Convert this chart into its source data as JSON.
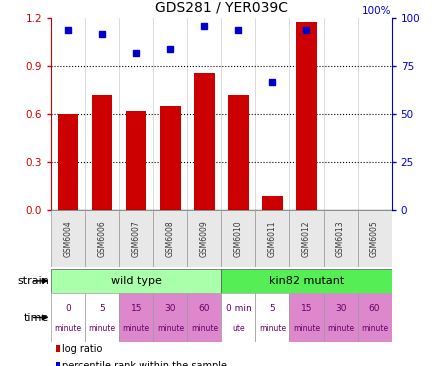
{
  "title": "GDS281 / YER039C",
  "categories": [
    "GSM6004",
    "GSM6006",
    "GSM6007",
    "GSM6008",
    "GSM6009",
    "GSM6010",
    "GSM6011",
    "GSM6012",
    "GSM6013",
    "GSM6005"
  ],
  "log_ratio": [
    0.6,
    0.72,
    0.62,
    0.65,
    0.86,
    0.72,
    0.09,
    1.18,
    0.0,
    0.0
  ],
  "percentile": [
    94,
    92,
    82,
    84,
    96,
    94,
    67,
    94,
    0,
    0
  ],
  "bar_color": "#cc0000",
  "dot_color": "#0000cc",
  "ylim_left": [
    0,
    1.2
  ],
  "ylim_right": [
    0,
    100
  ],
  "yticks_left": [
    0,
    0.3,
    0.6,
    0.9,
    1.2
  ],
  "yticks_right": [
    0,
    25,
    50,
    75,
    100
  ],
  "ylabel_left_color": "#cc0000",
  "ylabel_right_color": "#0000cc",
  "strain_wild_label": "wild type",
  "strain_wild_color": "#aaffaa",
  "strain_mutant_label": "kin82 mutant",
  "strain_mutant_color": "#55ee55",
  "time_labels_line1": [
    "0",
    "5",
    "15",
    "30",
    "60",
    "0 min",
    "5",
    "15",
    "30",
    "60"
  ],
  "time_labels_line2": [
    "minute",
    "minute",
    "minute",
    "minute",
    "minute",
    "ute",
    "minute",
    "minute",
    "minute",
    "minute"
  ],
  "time_colors": [
    "#ffffff",
    "#ffffff",
    "#dd88cc",
    "#dd88cc",
    "#dd88cc",
    "#ffffff",
    "#ffffff",
    "#dd88cc",
    "#dd88cc",
    "#dd88cc"
  ],
  "bg_color": "#ffffff",
  "legend_items": [
    {
      "color": "#cc0000",
      "label": "log ratio"
    },
    {
      "color": "#0000cc",
      "label": "percentile rank within the sample"
    }
  ]
}
